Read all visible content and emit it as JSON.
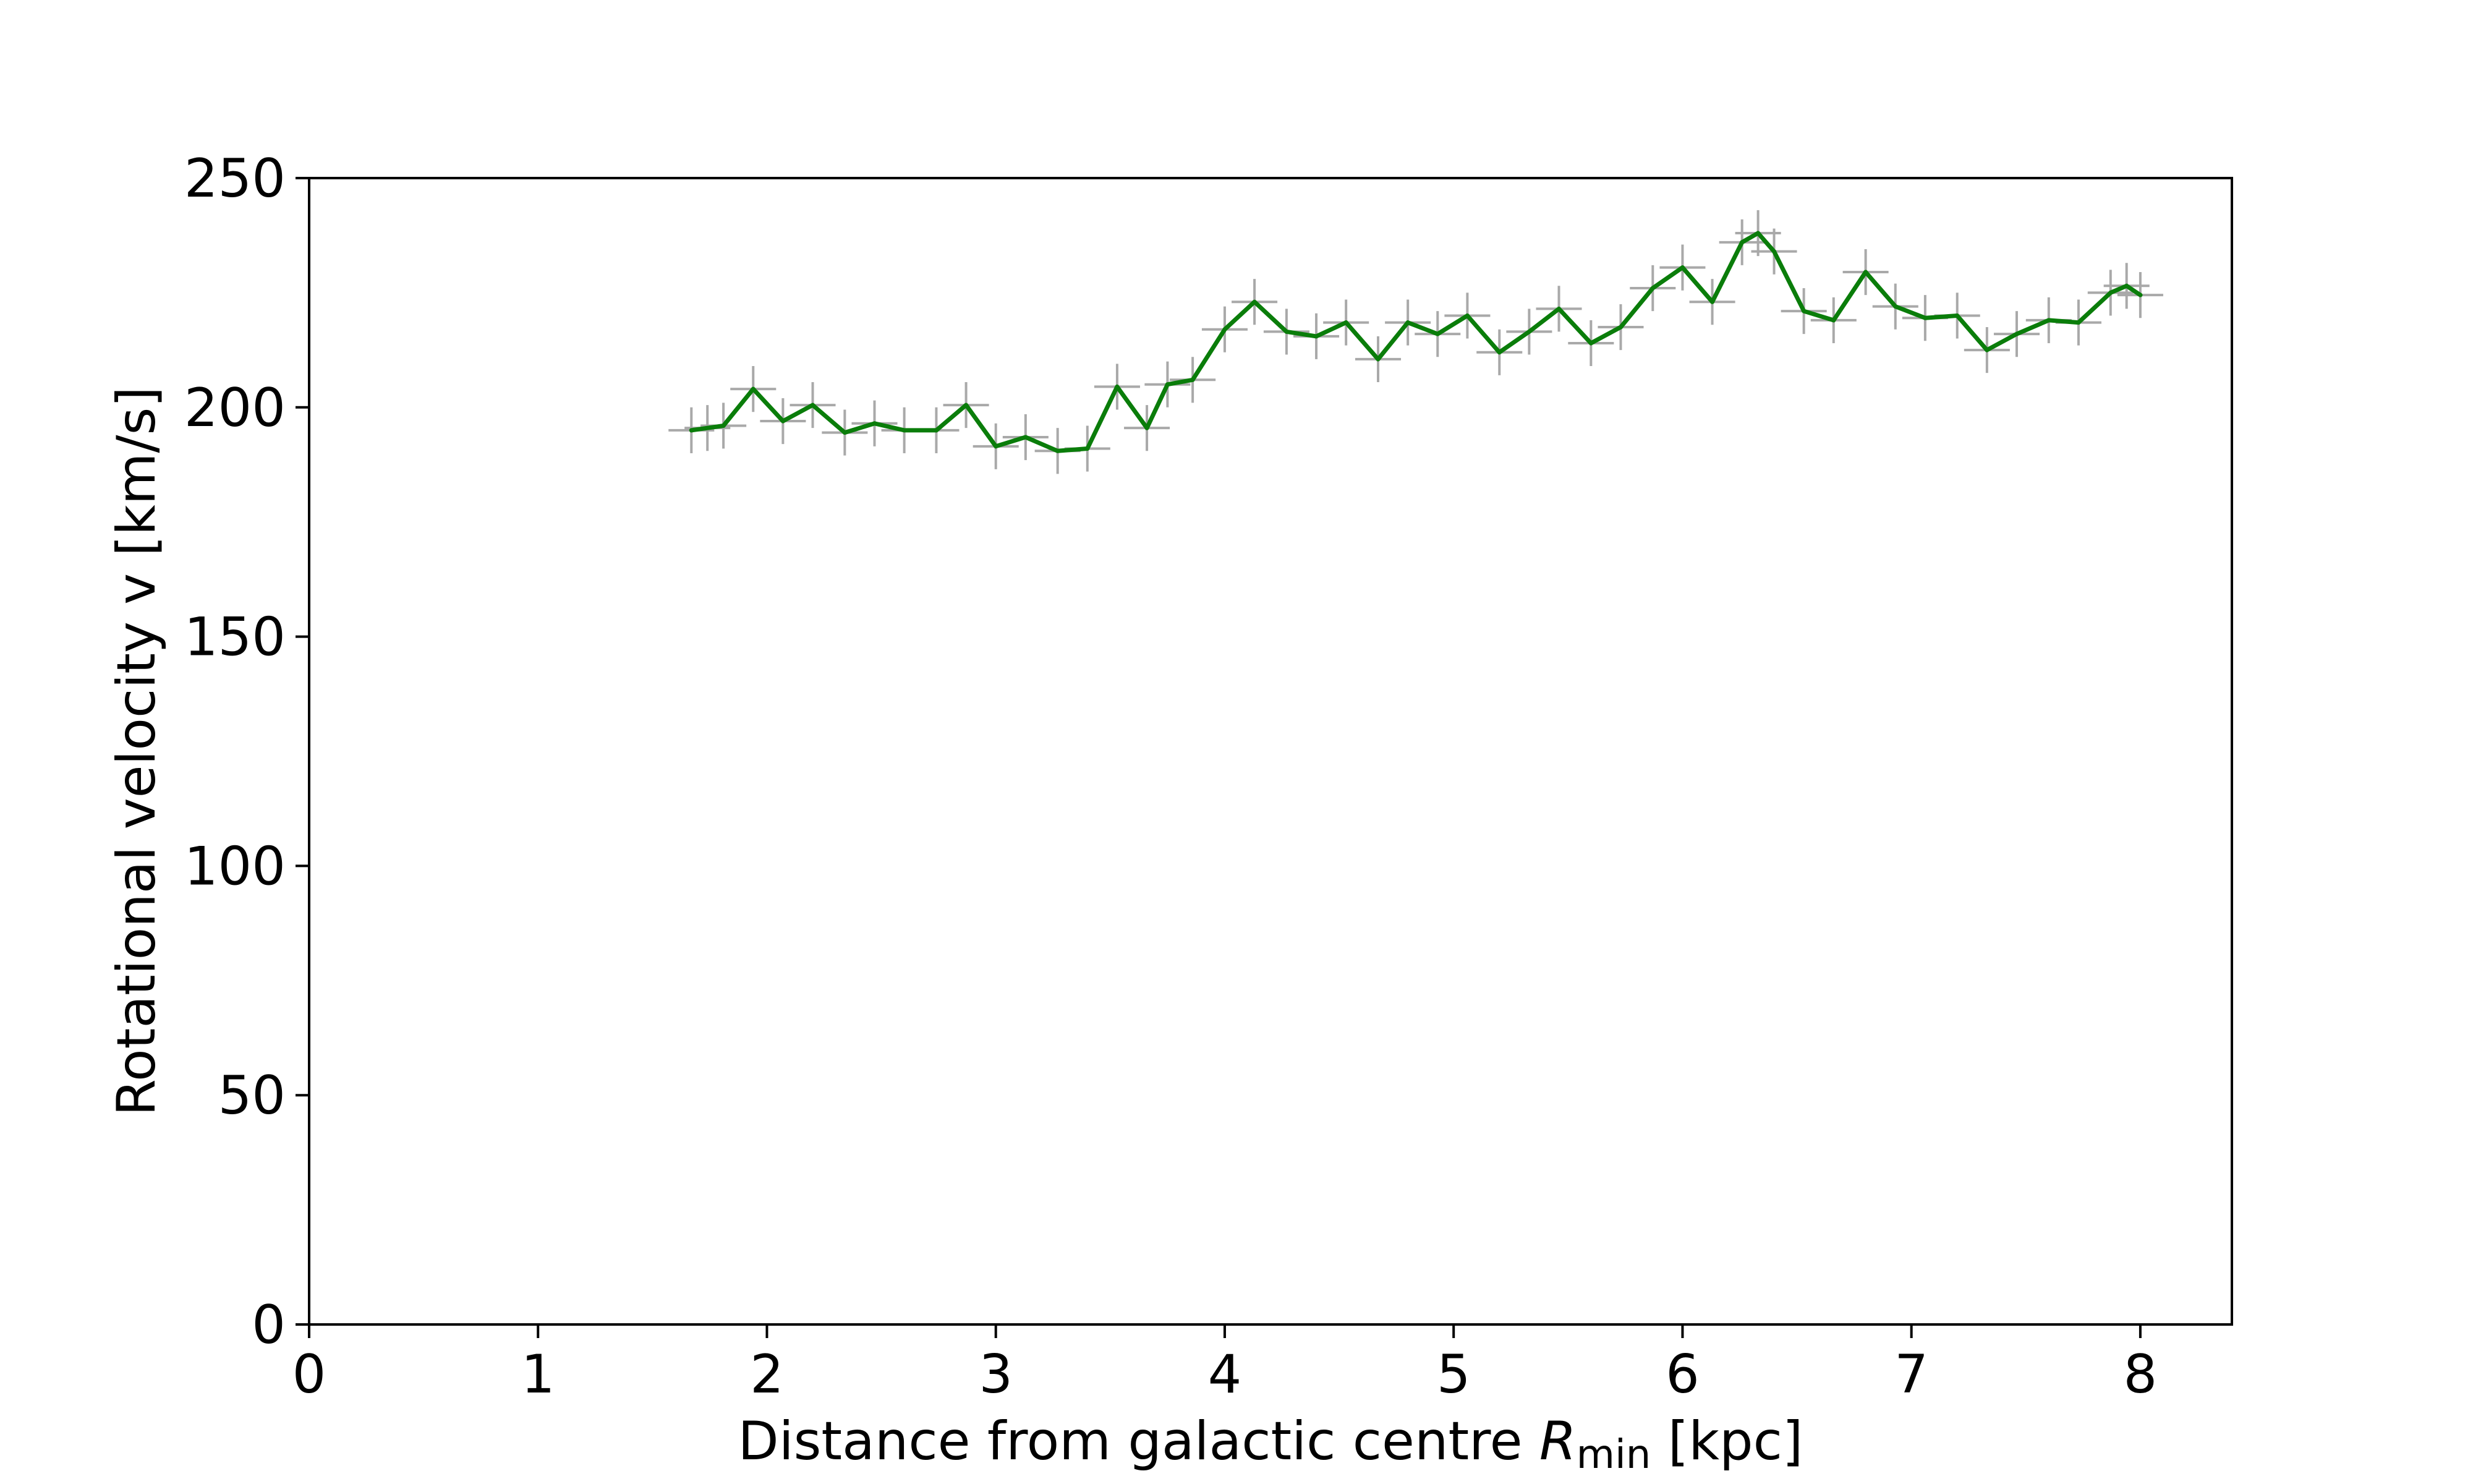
{
  "chart_data": {
    "type": "line",
    "xlabel": {
      "main": "Distance from galactic centre ",
      "symbol": "R",
      "subscript": "min",
      "unit": " [kpc]"
    },
    "ylabel": "Rotational velocity v [km/s]",
    "xlim": [
      0,
      8.4
    ],
    "ylim": [
      0,
      250
    ],
    "xticks": [
      0,
      1,
      2,
      3,
      4,
      5,
      6,
      7,
      8
    ],
    "yticks": [
      0,
      50,
      100,
      150,
      200,
      250
    ],
    "grid": false,
    "colors": {
      "line": "#0a7d0a",
      "errorbar": "#a9a9a9"
    },
    "error": {
      "x": 0.1,
      "y": 5
    },
    "series": [
      {
        "x": [
          1.67,
          1.74,
          1.81,
          1.94,
          2.07,
          2.2,
          2.34,
          2.47,
          2.6,
          2.74,
          2.87,
          3.0,
          3.13,
          3.27,
          3.4,
          3.53,
          3.66,
          3.75,
          3.86,
          4.0,
          4.13,
          4.27,
          4.4,
          4.53,
          4.67,
          4.8,
          4.93,
          5.06,
          5.2,
          5.33,
          5.46,
          5.6,
          5.73,
          5.87,
          6.0,
          6.13,
          6.26,
          6.33,
          6.4,
          6.53,
          6.66,
          6.8,
          6.93,
          7.06,
          7.2,
          7.33,
          7.46,
          7.6,
          7.73,
          7.87,
          7.94,
          8.0
        ],
        "y": [
          195,
          195.5,
          196,
          204,
          197,
          200.5,
          194.5,
          196.5,
          195,
          195,
          200.5,
          191.5,
          193.5,
          190.5,
          191,
          204.5,
          195.5,
          205,
          206,
          217,
          223,
          216.5,
          215.5,
          218.5,
          210.5,
          218.5,
          216,
          220,
          212,
          216.5,
          221.5,
          214,
          217.5,
          226,
          230.5,
          223,
          236,
          238,
          234,
          221,
          219,
          229.5,
          222,
          219.5,
          220,
          212.5,
          216,
          219,
          218.5,
          225,
          226.5,
          224.5
        ]
      }
    ]
  }
}
